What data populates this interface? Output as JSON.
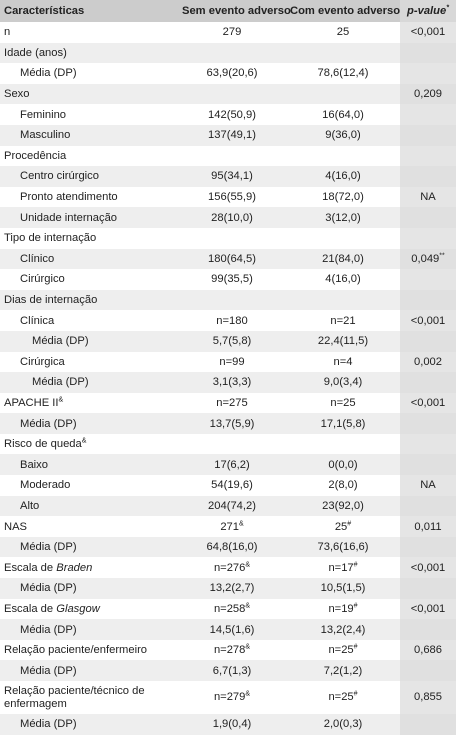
{
  "header": {
    "col1": "Características",
    "col2": "Sem evento adverso",
    "col3": "Com evento adverso",
    "col4": "p-value",
    "col4_sup": "*"
  },
  "rows": [
    {
      "label": "n",
      "indent": 0,
      "c2": "279",
      "c3": "25",
      "c4": "<0,001"
    },
    {
      "label": "Idade (anos)",
      "indent": 0,
      "c2": "",
      "c3": "",
      "c4": ""
    },
    {
      "label": "Média (DP)",
      "indent": 1,
      "c2": "63,9(20,6)",
      "c3": "78,6(12,4)",
      "c4": ""
    },
    {
      "label": "Sexo",
      "indent": 0,
      "c2": "",
      "c3": "",
      "c4": "0,209"
    },
    {
      "label": "Feminino",
      "indent": 1,
      "c2": "142(50,9)",
      "c3": "16(64,0)",
      "c4": ""
    },
    {
      "label": "Masculino",
      "indent": 1,
      "c2": "137(49,1)",
      "c3": "9(36,0)",
      "c4": ""
    },
    {
      "label": "Procedência",
      "indent": 0,
      "c2": "",
      "c3": "",
      "c4": ""
    },
    {
      "label": "Centro cirúrgico",
      "indent": 1,
      "c2": "95(34,1)",
      "c3": "4(16,0)",
      "c4": ""
    },
    {
      "label": "Pronto atendimento",
      "indent": 1,
      "c2": "156(55,9)",
      "c3": "18(72,0)",
      "c4": "NA"
    },
    {
      "label": "Unidade internação",
      "indent": 1,
      "c2": "28(10,0)",
      "c3": "3(12,0)",
      "c4": ""
    },
    {
      "label": "Tipo de internação",
      "indent": 0,
      "c2": "",
      "c3": "",
      "c4": ""
    },
    {
      "label": "Clínico",
      "indent": 1,
      "c2": "180(64,5)",
      "c3": "21(84,0)",
      "c4": "0,049",
      "c4_sup": "**"
    },
    {
      "label": "Cirúrgico",
      "indent": 1,
      "c2": "99(35,5)",
      "c3": "4(16,0)",
      "c4": ""
    },
    {
      "label": "Dias de internação",
      "indent": 0,
      "c2": "",
      "c3": "",
      "c4": ""
    },
    {
      "label": "Clínica",
      "indent": 1,
      "c2": "n=180",
      "c3": "n=21",
      "c4": "<0,001"
    },
    {
      "label": "Média (DP)",
      "indent": 2,
      "c2": "5,7(5,8)",
      "c3": "22,4(11,5)",
      "c4": ""
    },
    {
      "label": "Cirúrgica",
      "indent": 1,
      "c2": "n=99",
      "c3": "n=4",
      "c4": "0,002"
    },
    {
      "label": "Média (DP)",
      "indent": 2,
      "c2": "3,1(3,3)",
      "c3": "9,0(3,4)",
      "c4": ""
    },
    {
      "label": "APACHE II",
      "label_sup": "&",
      "indent": 0,
      "c2": "n=275",
      "c3": "n=25",
      "c4": "<0,001"
    },
    {
      "label": "Média (DP)",
      "indent": 1,
      "c2": "13,7(5,9)",
      "c3": "17,1(5,8)",
      "c4": ""
    },
    {
      "label": "Risco de queda",
      "label_sup": "&",
      "indent": 0,
      "c2": "",
      "c3": "",
      "c4": ""
    },
    {
      "label": "Baixo",
      "indent": 1,
      "c2": "17(6,2)",
      "c3": "0(0,0)",
      "c4": ""
    },
    {
      "label": "Moderado",
      "indent": 1,
      "c2": "54(19,6)",
      "c3": "2(8,0)",
      "c4": "NA"
    },
    {
      "label": "Alto",
      "indent": 1,
      "c2": "204(74,2)",
      "c3": "23(92,0)",
      "c4": ""
    },
    {
      "label": "NAS",
      "indent": 0,
      "c2": "271",
      "c2_sup": "&",
      "c3": "25",
      "c3_sup": "#",
      "c4": "0,011"
    },
    {
      "label": "Média (DP)",
      "indent": 1,
      "c2": "64,8(16,0)",
      "c3": "73,6(16,6)",
      "c4": ""
    },
    {
      "label": "Escala de ",
      "label_em": "Braden",
      "indent": 0,
      "c2": "n=276",
      "c2_sup": "&",
      "c3": "n=17",
      "c3_sup": "#",
      "c4": "<0,001"
    },
    {
      "label": "Média (DP)",
      "indent": 1,
      "c2": "13,2(2,7)",
      "c3": "10,5(1,5)",
      "c4": ""
    },
    {
      "label": "Escala de ",
      "label_em": "Glasgow",
      "indent": 0,
      "c2": "n=258",
      "c2_sup": "&",
      "c3": "n=19",
      "c3_sup": "#",
      "c4": "<0,001"
    },
    {
      "label": "Média (DP)",
      "indent": 1,
      "c2": "14,5(1,6)",
      "c3": "13,2(2,4)",
      "c4": ""
    },
    {
      "label": "Relação paciente/enfermeiro",
      "indent": 0,
      "c2": "n=278",
      "c2_sup": "&",
      "c3": "n=25",
      "c3_sup": "#",
      "c4": "0,686"
    },
    {
      "label": "Média (DP)",
      "indent": 1,
      "c2": "6,7(1,3)",
      "c3": "7,2(1,2)",
      "c4": ""
    },
    {
      "label": "Relação paciente/técnico de enfermagem",
      "indent": 0,
      "tall": true,
      "c2": "n=279",
      "c2_sup": "&",
      "c3": "n=25",
      "c3_sup": "#",
      "c4": "0,855"
    },
    {
      "label": "Média (DP)",
      "indent": 1,
      "c2": "1,9(0,4)",
      "c3": "2,0(0,3)",
      "c4": ""
    }
  ]
}
